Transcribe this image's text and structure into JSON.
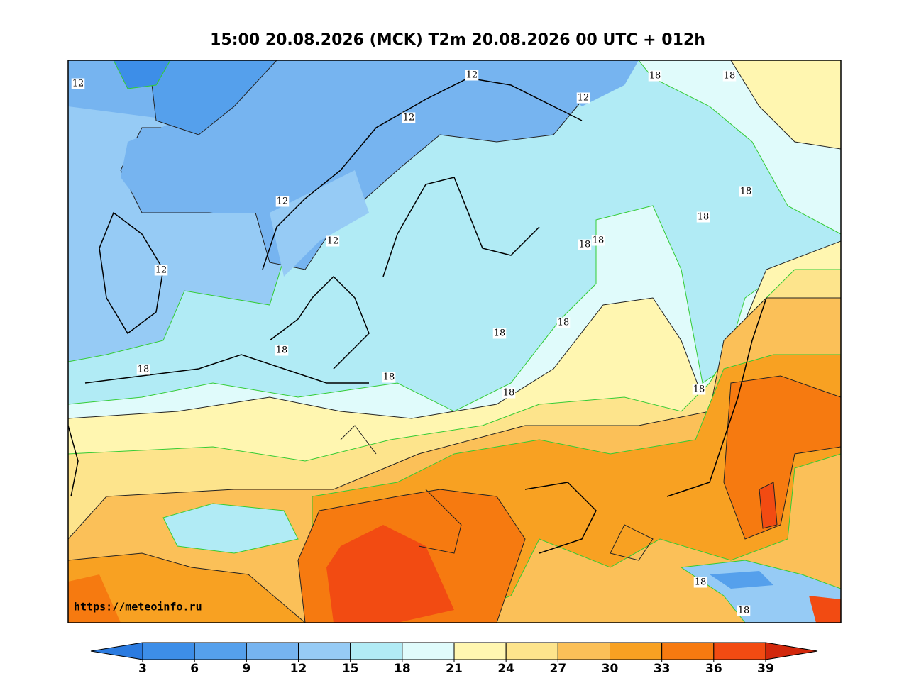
{
  "title": "15:00 20.08.2026 (MCK) T2m 20.08.2026 00 UTC + 012h",
  "watermark": "https://meteoinfo.ru",
  "contour_labels": [
    "12",
    "12",
    "18",
    "18",
    "12",
    "12",
    "18",
    "12",
    "18",
    "12",
    "18",
    "18",
    "12",
    "18",
    "18",
    "18",
    "18",
    "18",
    "18",
    "18",
    "18",
    "18"
  ],
  "colorbar": {
    "ticks": [
      3,
      6,
      9,
      12,
      15,
      18,
      21,
      24,
      27,
      30,
      33,
      36,
      39
    ],
    "under_color": "#2b7be0",
    "over_color": "#d2280c",
    "colors": [
      "#3d8ee8",
      "#55a0ec",
      "#76b4f0",
      "#96cbf5",
      "#b1ebf5",
      "#e0fbfb",
      "#fff6b0",
      "#fde48c",
      "#fbc058",
      "#f8a122",
      "#f67a10",
      "#f24b12"
    ]
  }
}
